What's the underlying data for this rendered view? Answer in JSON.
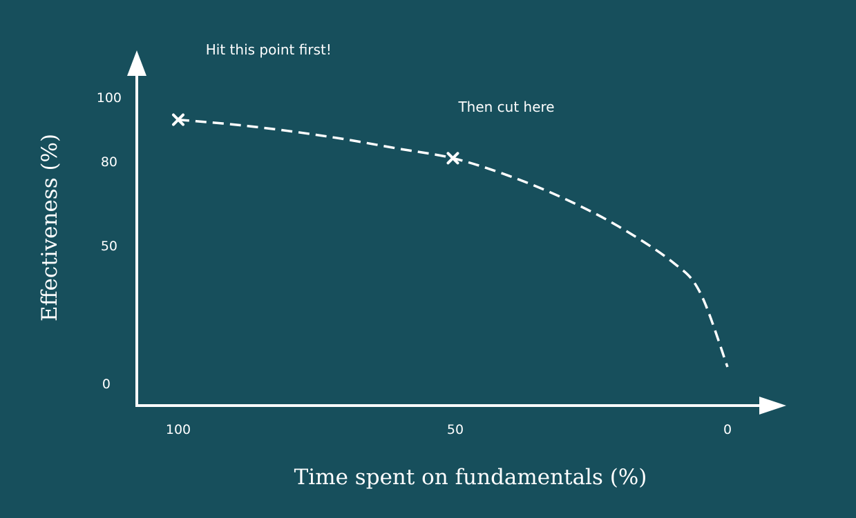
{
  "chart_data": {
    "type": "line",
    "xlabel": "Time spent on fundamentals (%)",
    "ylabel": "Effectiveness (%)",
    "x_ticks": [
      "100",
      "50",
      "0"
    ],
    "y_ticks": [
      "100",
      "80",
      "50",
      "0"
    ],
    "x_reversed": true,
    "grid": false,
    "series": [
      {
        "style": "dashed",
        "x": [
          100,
          90,
          80,
          70,
          60,
          50,
          40,
          30,
          20,
          10,
          5,
          0
        ],
        "y": [
          93,
          91.5,
          89.5,
          87,
          84,
          81,
          75,
          67,
          57,
          44,
          33,
          6
        ]
      }
    ],
    "markers": [
      {
        "symbol": "x",
        "x": 100,
        "y": 93
      },
      {
        "symbol": "x",
        "x": 50,
        "y": 81
      }
    ],
    "annotations": [
      {
        "text": "Hit this point first!",
        "x": 95,
        "y": 117
      },
      {
        "text": "Then cut here",
        "x": 49,
        "y": 95.5
      }
    ]
  },
  "colors": {
    "background": "#174f5c",
    "foreground": "#ffffff"
  }
}
